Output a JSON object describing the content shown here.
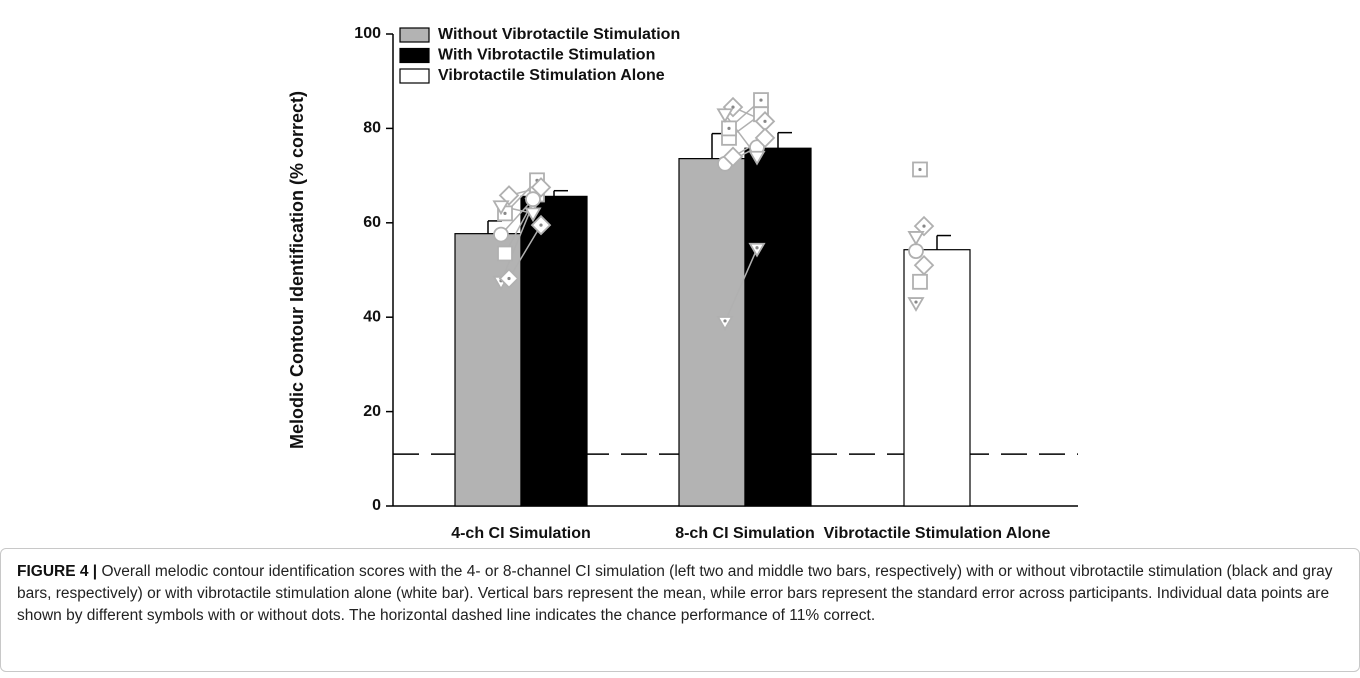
{
  "chart_data": {
    "type": "bar",
    "y_label": "Melodic Contour Identification (% correct)",
    "categories": [
      "4-ch CI Simulation",
      "8-ch CI Simulation",
      "Vibrotactile Stimulation Alone"
    ],
    "series": [
      {
        "name": "Without Vibrotactile Stimulation",
        "color": "#b3b3b3",
        "values": [
          57.7,
          73.6,
          null
        ],
        "errors": [
          2.7,
          5.3,
          null
        ],
        "points": [
          [
            47.5,
            53.5,
            48.2,
            57.5,
            62,
            65.8,
            63.5
          ],
          [
            39,
            78,
            84.5,
            72.5,
            80,
            74,
            83
          ],
          null
        ]
      },
      {
        "name": "With Vibrotactile Stimulation",
        "color": "#000000",
        "values": [
          65.6,
          75.8,
          null
        ],
        "errors": [
          1.2,
          3.3,
          null
        ],
        "points": [
          [
            64,
            66,
            59.5,
            65,
            69,
            67.5,
            62
          ],
          [
            54.5,
            83,
            81.5,
            76,
            86,
            78,
            74
          ],
          null
        ]
      },
      {
        "name": "Vibrotactile Stimulation Alone",
        "color": "#ffffff",
        "values": [
          null,
          null,
          54.3
        ],
        "errors": [
          null,
          null,
          3.0
        ],
        "points": [
          null,
          null,
          [
            43,
            47.5,
            59.3,
            54,
            71.3,
            51,
            57
          ]
        ]
      }
    ],
    "symbols": [
      "triangle-dot",
      "square",
      "diamond-dot",
      "circle",
      "square-dot",
      "diamond",
      "triangle"
    ],
    "point_color": "#b0b0b0",
    "reference_line": 11,
    "ylim": [
      0,
      100
    ],
    "yticks": [
      0,
      20,
      40,
      60,
      80,
      100
    ],
    "legend": "top-left"
  },
  "caption": {
    "label": "FIGURE 4 |",
    "text": "Overall melodic contour identification scores with the 4- or 8-channel CI simulation (left two and middle two bars, respectively) with or without vibrotactile stimulation (black and gray bars, respectively) or with vibrotactile stimulation alone (white bar). Vertical bars represent the mean, while error bars represent the standard error across participants. Individual data points are shown by different symbols with or without dots. The horizontal dashed line indicates the chance performance of 11% correct."
  }
}
